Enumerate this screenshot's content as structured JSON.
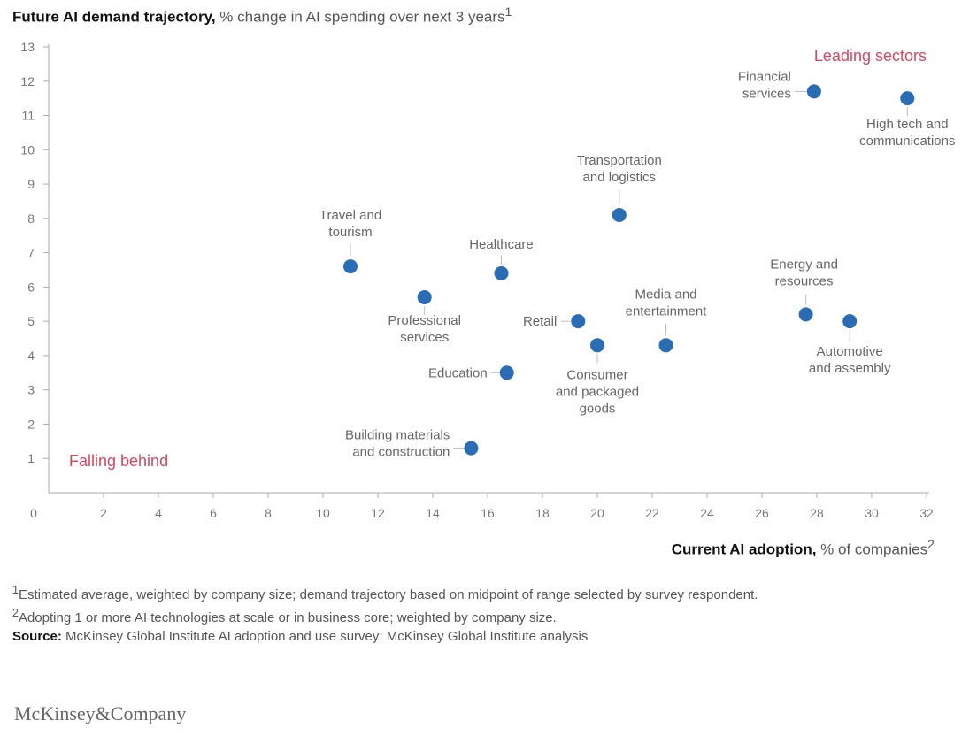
{
  "title": {
    "bold": "Future AI demand trajectory,",
    "rest": " % change in AI spending over next 3 years",
    "sup": "1"
  },
  "xlabel_text": {
    "bold": "Current AI adoption,",
    "rest": " % of companies",
    "sup": "2"
  },
  "chart_data": {
    "type": "scatter",
    "xlim": [
      0,
      32
    ],
    "ylim": [
      0,
      13
    ],
    "x_ticks": [
      0,
      2,
      4,
      6,
      8,
      10,
      12,
      14,
      16,
      18,
      20,
      22,
      24,
      26,
      28,
      30,
      32
    ],
    "y_ticks": [
      1,
      2,
      3,
      4,
      5,
      6,
      7,
      8,
      9,
      10,
      11,
      12,
      13
    ],
    "xlabel": "Current AI adoption, % of companies",
    "ylabel": "Future AI demand trajectory, % change in AI spending over next 3 years",
    "point_color": "#2a6db5",
    "label_color": "#666666",
    "corner_color": "#d8475e",
    "points": [
      {
        "name": "Financial services",
        "lines": [
          "Financial",
          "services"
        ],
        "x": 27.9,
        "y": 11.7
      },
      {
        "name": "High tech and communications",
        "lines": [
          "High tech and",
          "communications"
        ],
        "x": 31.3,
        "y": 11.5
      },
      {
        "name": "Transportation and logistics",
        "lines": [
          "Transportation",
          "and logistics"
        ],
        "x": 20.8,
        "y": 8.1
      },
      {
        "name": "Travel and tourism",
        "lines": [
          "Travel and",
          "tourism"
        ],
        "x": 11.0,
        "y": 6.6
      },
      {
        "name": "Healthcare",
        "lines": [
          "Healthcare"
        ],
        "x": 16.5,
        "y": 6.4
      },
      {
        "name": "Professional services",
        "lines": [
          "Professional",
          "services"
        ],
        "x": 13.7,
        "y": 5.7
      },
      {
        "name": "Retail",
        "lines": [
          "Retail"
        ],
        "x": 19.3,
        "y": 5.0
      },
      {
        "name": "Media and entertainment",
        "lines": [
          "Media and",
          "entertainment"
        ],
        "x": 22.5,
        "y": 4.3
      },
      {
        "name": "Consumer and packaged goods",
        "lines": [
          "Consumer",
          "and packaged",
          "goods"
        ],
        "x": 20.0,
        "y": 4.3
      },
      {
        "name": "Energy and resources",
        "lines": [
          "Energy and",
          "resources"
        ],
        "x": 27.6,
        "y": 5.2
      },
      {
        "name": "Automotive and assembly",
        "lines": [
          "Automotive",
          "and assembly"
        ],
        "x": 29.2,
        "y": 5.0
      },
      {
        "name": "Education",
        "lines": [
          "Education"
        ],
        "x": 16.7,
        "y": 3.5
      },
      {
        "name": "Building materials and construction",
        "lines": [
          "Building materials",
          "and construction"
        ],
        "x": 15.4,
        "y": 1.3
      }
    ],
    "annotations": [
      {
        "text": "Leading sectors",
        "position": "top-right"
      },
      {
        "text": "Falling behind",
        "position": "bottom-left"
      }
    ]
  },
  "footnotes": {
    "note1_sup": "1",
    "note1": "Estimated average, weighted by company size; demand trajectory based on midpoint of range selected by survey respondent.",
    "note2_sup": "2",
    "note2": "Adopting 1 or more AI technologies at scale or in business core; weighted by company size.",
    "source_label": "Source:",
    "source_text": " McKinsey Global Institute AI adoption and use survey; McKinsey Global Institute analysis"
  },
  "brand": "McKinsey&Company"
}
